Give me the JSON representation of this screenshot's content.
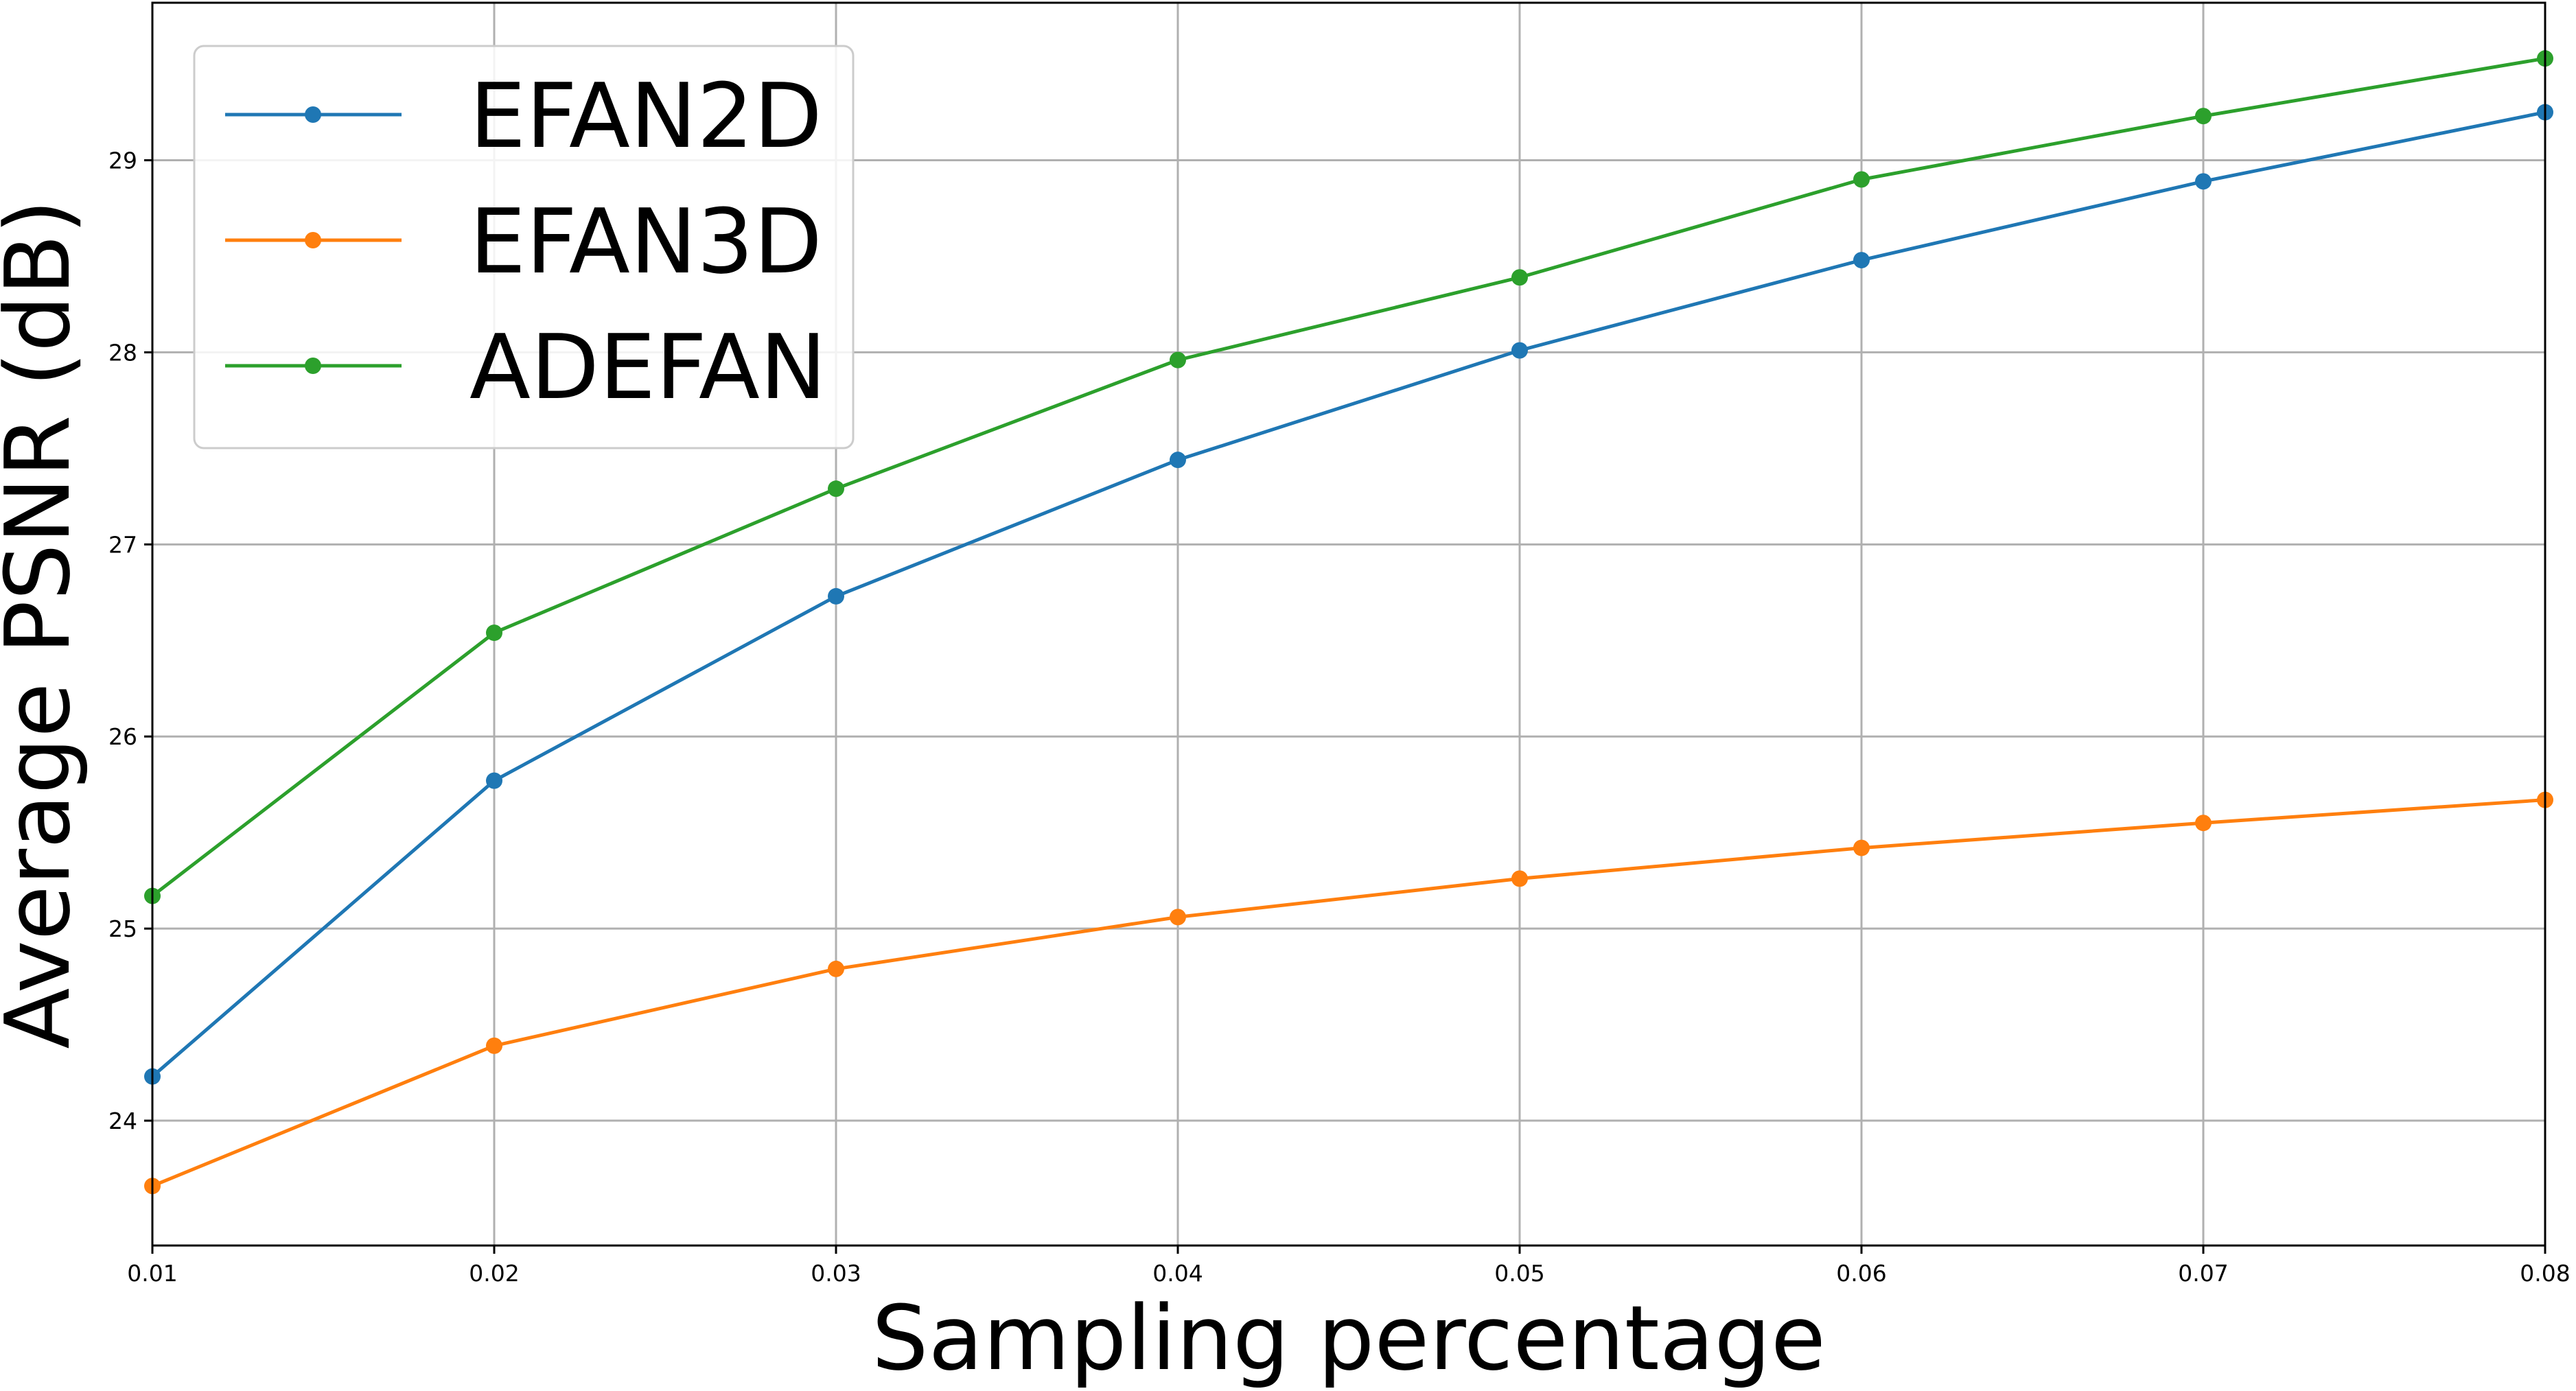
{
  "chart_data": {
    "type": "line",
    "title": "",
    "xlabel": "Sampling percentage",
    "ylabel": "Average PSNR (dB)",
    "x": [
      0.01,
      0.02,
      0.03,
      0.04,
      0.05,
      0.06,
      0.07,
      0.08
    ],
    "xlim": [
      0.01,
      0.08
    ],
    "ylim": [
      23.35,
      29.82
    ],
    "xticks": [
      "0.01",
      "0.02",
      "0.03",
      "0.04",
      "0.05",
      "0.06",
      "0.07",
      "0.08"
    ],
    "yticks": [
      "24",
      "25",
      "26",
      "27",
      "28",
      "29"
    ],
    "grid": true,
    "legend_position": "top-left",
    "series": [
      {
        "name": "EFAN2D",
        "color": "#1f77b4",
        "values": [
          24.23,
          25.77,
          26.73,
          27.44,
          28.01,
          28.48,
          28.89,
          29.25
        ]
      },
      {
        "name": "EFAN3D",
        "color": "#ff7f0e",
        "values": [
          23.66,
          24.39,
          24.79,
          25.06,
          25.26,
          25.42,
          25.55,
          25.67
        ]
      },
      {
        "name": "ADEFAN",
        "color": "#2ca02c",
        "values": [
          25.17,
          26.54,
          27.29,
          27.96,
          28.39,
          28.9,
          29.23,
          29.53
        ]
      }
    ]
  }
}
